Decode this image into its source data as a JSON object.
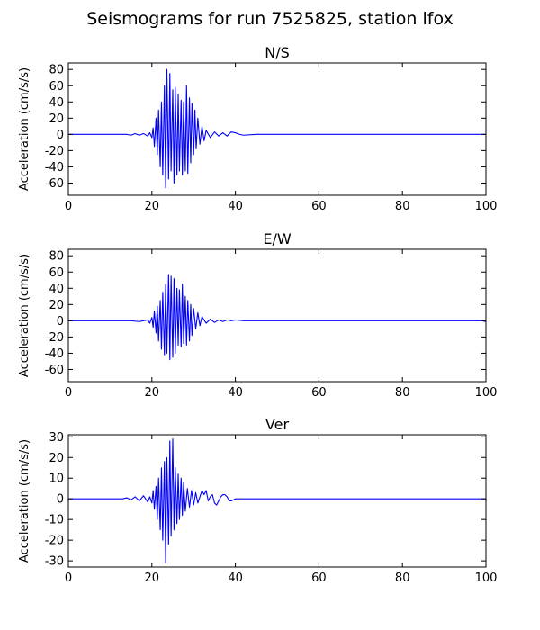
{
  "figure_title": "Seismograms for run 7525825, station lfox",
  "colors": {
    "trace": "#0000ff",
    "axes": "#000000"
  },
  "chart_data": [
    {
      "type": "line",
      "title": "N/S",
      "xlabel": "",
      "ylabel": "Acceleration (cm/s/s)",
      "xlim": [
        0,
        100
      ],
      "ylim": [
        -75,
        88
      ],
      "xticks": [
        0,
        20,
        40,
        60,
        80,
        100
      ],
      "yticks": [
        -60,
        -40,
        -20,
        0,
        20,
        40,
        60,
        80
      ],
      "series": [
        {
          "x": [
            0,
            14,
            15,
            16,
            17,
            18,
            19,
            19.5,
            20,
            20.3,
            20.6,
            21,
            21.3,
            21.6,
            22,
            22.3,
            22.6,
            23,
            23.3,
            23.6,
            24,
            24.3,
            24.6,
            25,
            25.3,
            25.6,
            26,
            26.3,
            26.6,
            27,
            27.3,
            27.6,
            28,
            28.3,
            28.6,
            29,
            29.3,
            29.6,
            30,
            30.3,
            30.6,
            31,
            31.5,
            32,
            32.5,
            33,
            34,
            35,
            36,
            37,
            38,
            39,
            40,
            41,
            42,
            45,
            50,
            60,
            80,
            100
          ],
          "y": [
            0,
            0,
            -1,
            1,
            -1,
            1,
            -2,
            2,
            -4,
            8,
            -15,
            20,
            -25,
            30,
            -40,
            40,
            -50,
            60,
            -66,
            80,
            -55,
            75,
            -45,
            55,
            -60,
            58,
            -50,
            50,
            -45,
            42,
            -50,
            40,
            -45,
            60,
            -48,
            45,
            -35,
            38,
            -25,
            30,
            -18,
            20,
            -12,
            10,
            -8,
            5,
            -4,
            3,
            -2,
            2,
            -2,
            3,
            2,
            0,
            -1,
            0,
            0,
            0,
            0,
            0
          ]
        }
      ]
    },
    {
      "type": "line",
      "title": "E/W",
      "xlabel": "",
      "ylabel": "Acceleration (cm/s/s)",
      "xlim": [
        0,
        100
      ],
      "ylim": [
        -75,
        88
      ],
      "xticks": [
        0,
        20,
        40,
        60,
        80,
        100
      ],
      "yticks": [
        -60,
        -40,
        -20,
        0,
        20,
        40,
        60,
        80
      ],
      "series": [
        {
          "x": [
            0,
            15,
            17,
            19,
            19.5,
            20,
            20.3,
            20.6,
            21,
            21.3,
            21.6,
            22,
            22.3,
            22.6,
            23,
            23.3,
            23.6,
            24,
            24.3,
            24.6,
            25,
            25.3,
            25.6,
            26,
            26.3,
            26.6,
            27,
            27.3,
            27.6,
            28,
            28.3,
            28.6,
            29,
            29.3,
            29.6,
            30,
            30.5,
            31,
            31.5,
            32,
            33,
            34,
            35,
            36,
            37,
            38,
            39,
            40,
            42,
            45,
            60,
            80,
            99,
            100
          ],
          "y": [
            0,
            0,
            -1,
            1,
            -3,
            4,
            -8,
            12,
            -15,
            18,
            -25,
            25,
            -35,
            35,
            -42,
            45,
            -40,
            57,
            -48,
            55,
            -45,
            52,
            -40,
            40,
            -30,
            38,
            -32,
            45,
            -28,
            30,
            -30,
            25,
            -25,
            20,
            -18,
            15,
            -10,
            10,
            -6,
            5,
            -3,
            2,
            -2,
            1,
            -1,
            1,
            0,
            1,
            0,
            0,
            0,
            0,
            0,
            -1
          ]
        }
      ]
    },
    {
      "type": "line",
      "title": "Ver",
      "xlabel": "",
      "ylabel": "Acceleration (cm/s/s)",
      "xlim": [
        0,
        100
      ],
      "ylim": [
        -33,
        31
      ],
      "xticks": [
        0,
        20,
        40,
        60,
        80,
        100
      ],
      "yticks": [
        -30,
        -20,
        -10,
        0,
        10,
        20,
        30
      ],
      "series": [
        {
          "x": [
            0,
            13,
            14,
            15,
            16,
            17,
            18,
            19,
            19.5,
            20,
            20.3,
            20.6,
            21,
            21.3,
            21.6,
            22,
            22.3,
            22.6,
            23,
            23.3,
            23.6,
            24,
            24.3,
            24.6,
            25,
            25.3,
            25.6,
            26,
            26.3,
            26.6,
            27,
            27.3,
            27.6,
            28,
            28.5,
            29,
            29.5,
            30,
            30.5,
            31,
            31.5,
            32,
            32.5,
            33,
            33.5,
            34,
            34.5,
            35,
            35.5,
            36,
            36.5,
            37,
            37.5,
            38,
            38.5,
            39,
            40,
            42,
            45,
            60,
            80,
            100
          ],
          "y": [
            0,
            0,
            0.5,
            -0.5,
            1,
            -1,
            1.5,
            -1.5,
            1,
            -2,
            4,
            -5,
            6,
            -10,
            10,
            -15,
            15,
            -20,
            18,
            -31,
            20,
            -22,
            28,
            -18,
            29,
            -15,
            15,
            -12,
            12,
            -10,
            10,
            -8,
            8,
            -6,
            5,
            -4,
            4,
            -3,
            3,
            -2,
            1,
            4,
            2,
            4,
            -1,
            1,
            2,
            -2,
            -3,
            -1,
            1,
            2,
            2,
            1,
            -1,
            -1,
            0,
            0,
            0,
            0,
            0,
            0
          ]
        }
      ]
    }
  ]
}
